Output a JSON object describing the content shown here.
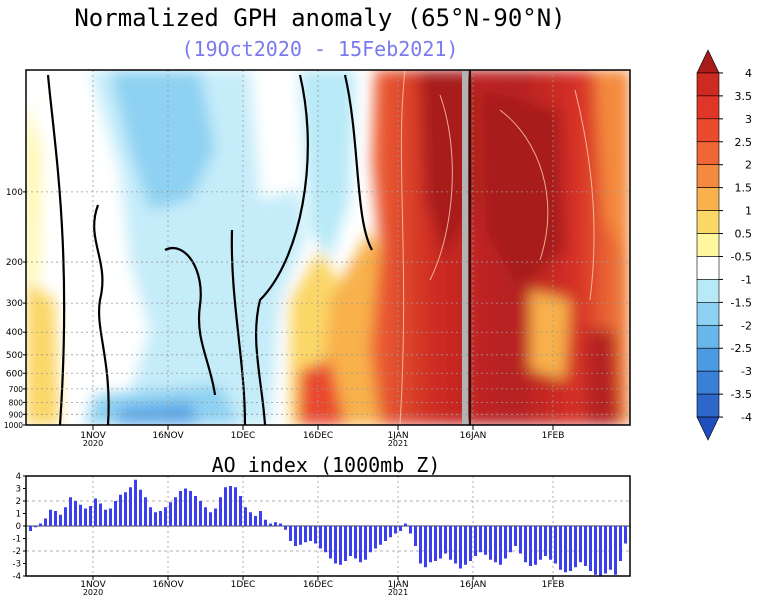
{
  "chart_data": [
    {
      "type": "heatmap",
      "title": "Normalized GPH anomaly (65°N-90°N)",
      "subtitle": "(19Oct2020 - 15Feb2021)",
      "xlabel": "",
      "ylabel": "",
      "x_ticks": [
        {
          "label": "1NOV",
          "sub": "2020"
        },
        {
          "label": "16NOV",
          "sub": ""
        },
        {
          "label": "1DEC",
          "sub": ""
        },
        {
          "label": "16DEC",
          "sub": ""
        },
        {
          "label": "1JAN",
          "sub": "2021"
        },
        {
          "label": "16JAN",
          "sub": ""
        },
        {
          "label": "1FEB",
          "sub": ""
        }
      ],
      "y_ticks": [
        "100",
        "200",
        "300",
        "400",
        "500",
        "600",
        "700",
        "800",
        "900",
        "1000"
      ],
      "y_scale": "log-pressure (hPa)",
      "colorbar": {
        "labels": [
          "4",
          "3.5",
          "3",
          "2.5",
          "2",
          "1.5",
          "1",
          "0.5",
          "-0.5",
          "-1",
          "-1.5",
          "-2",
          "-2.5",
          "-3",
          "-3.5",
          "-4"
        ],
        "colors": [
          "#a81c1c",
          "#cd2a22",
          "#e03628",
          "#ea4a2e",
          "#f06536",
          "#f48a3e",
          "#f8b14c",
          "#fbd768",
          "#fff6a0",
          "#ffffff",
          "#b7e9f7",
          "#8ed1f2",
          "#68b6ea",
          "#4c9ae2",
          "#3b80d8",
          "#2e67ca",
          "#1f4fbf"
        ]
      },
      "annotation": "vertical grey line near 12JAN"
    },
    {
      "type": "bar",
      "title": "AO index (1000mb Z)",
      "xlabel": "",
      "ylabel": "",
      "ylim": [
        -4,
        4
      ],
      "y_ticks": [
        "4",
        "3",
        "2",
        "1",
        "0",
        "-1",
        "-2",
        "-3",
        "-4"
      ],
      "x_ticks": [
        {
          "label": "1NOV",
          "sub": "2020"
        },
        {
          "label": "16NOV",
          "sub": ""
        },
        {
          "label": "1DEC",
          "sub": ""
        },
        {
          "label": "16DEC",
          "sub": ""
        },
        {
          "label": "1JAN",
          "sub": "2021"
        },
        {
          "label": "16JAN",
          "sub": ""
        },
        {
          "label": "1FEB",
          "sub": ""
        }
      ],
      "start_date": "19Oct2020",
      "bar_color": "#3b3ff0",
      "values": [
        -0.4,
        -0.1,
        0.2,
        0.6,
        1.3,
        1.2,
        0.9,
        1.5,
        2.3,
        2.0,
        1.7,
        1.4,
        1.6,
        2.2,
        1.8,
        1.3,
        1.4,
        2.0,
        2.5,
        2.7,
        3.1,
        3.7,
        2.9,
        2.3,
        1.5,
        1.1,
        1.2,
        1.5,
        1.9,
        2.3,
        2.8,
        3.0,
        2.8,
        2.4,
        2.0,
        1.5,
        1.1,
        1.4,
        2.3,
        3.1,
        3.2,
        3.1,
        2.4,
        1.5,
        1.1,
        0.8,
        1.2,
        0.5,
        0.2,
        0.3,
        0.2,
        -0.3,
        -1.2,
        -1.6,
        -1.5,
        -1.3,
        -1.2,
        -1.4,
        -1.8,
        -2.1,
        -2.6,
        -3.0,
        -3.1,
        -2.8,
        -2.4,
        -2.6,
        -2.9,
        -2.7,
        -2.1,
        -1.8,
        -1.5,
        -1.2,
        -0.9,
        -0.6,
        -0.4,
        0.2,
        -0.6,
        -1.6,
        -3.0,
        -3.3,
        -2.9,
        -2.8,
        -2.6,
        -2.2,
        -2.7,
        -3.0,
        -3.4,
        -3.1,
        -2.8,
        -2.4,
        -2.1,
        -2.3,
        -2.7,
        -2.9,
        -3.1,
        -2.6,
        -2.1,
        -1.6,
        -2.2,
        -2.9,
        -3.2,
        -3.1,
        -2.7,
        -2.4,
        -2.7,
        -3.0,
        -3.5,
        -3.7,
        -3.6,
        -3.3,
        -2.9,
        -3.2,
        -3.6,
        -3.9,
        -4.0,
        -3.8,
        -3.5,
        -3.9,
        -2.8,
        -1.4
      ]
    }
  ]
}
